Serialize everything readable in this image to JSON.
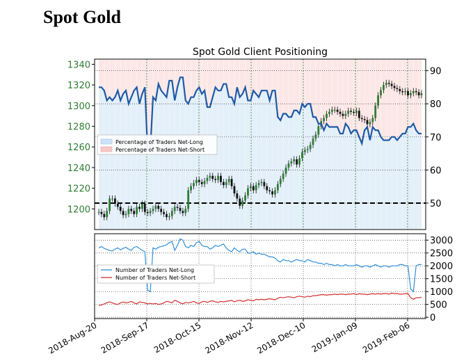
{
  "page": {
    "title": "Spot Gold"
  },
  "chart_data": [
    {
      "type": "line",
      "title": "Spot Gold Client Positioning",
      "y_left": {
        "ticks": [
          1200,
          1220,
          1240,
          1260,
          1280,
          1300,
          1320,
          1340
        ],
        "ylim": [
          1180,
          1345
        ],
        "color": "#2e7d32"
      },
      "y_right": {
        "ticks": [
          50,
          60,
          70,
          80,
          90
        ],
        "ylim": [
          42,
          93.5
        ]
      },
      "x_ticks": [
        "2018-Aug-20",
        "2018-Sep-17",
        "2018-Oct-15",
        "2018-Nov-12",
        "2018-Dec-10",
        "2019-Jan-09",
        "2019-Feb-06"
      ],
      "reference_line": 50,
      "legend": {
        "placement": "left",
        "entries": [
          {
            "label": "Percentage of Traders Net-Long",
            "color": "#cfe3f6"
          },
          {
            "label": "Percentage of Traders Net-Short",
            "color": "#f6c9c9"
          }
        ]
      },
      "series": [
        {
          "name": "Percentage of Traders Net-Long",
          "color": "#1f5aa6",
          "values": [
            85,
            85,
            84,
            81,
            82,
            81,
            82,
            84,
            81,
            83,
            84,
            80,
            82,
            84,
            85,
            80,
            83,
            85,
            66,
            66,
            82,
            81,
            86,
            84,
            83,
            82,
            87,
            87,
            81,
            85,
            88,
            88,
            81,
            80,
            82,
            82,
            84,
            85,
            83,
            84,
            79,
            79,
            82,
            85,
            84,
            84,
            86,
            86,
            82,
            82,
            80,
            85,
            82,
            83,
            85,
            81,
            81,
            84,
            83,
            82,
            84,
            84,
            84,
            81,
            84,
            84,
            76,
            75,
            77,
            77,
            76,
            76,
            78,
            78,
            77,
            80,
            79,
            80,
            80,
            76,
            76,
            74,
            74,
            72,
            74,
            73,
            73,
            73,
            73,
            71,
            71,
            74,
            73,
            71,
            72,
            72,
            70,
            68,
            72,
            73,
            69,
            73,
            72,
            72,
            70,
            69,
            69,
            69,
            70,
            70,
            69,
            70,
            71,
            71,
            73,
            73,
            74,
            72,
            71,
            71
          ]
        },
        {
          "name": "Spot Gold",
          "color": "#2e7d32",
          "values": [
            1197,
            1195,
            1192,
            1198,
            1210,
            1210,
            1205,
            1202,
            1198,
            1194,
            1195,
            1200,
            1198,
            1195,
            1202,
            1200,
            1205,
            1197,
            1196,
            1198,
            1200,
            1203,
            1200,
            1197,
            1195,
            1192,
            1193,
            1198,
            1202,
            1201,
            1198,
            1196,
            1200,
            1218,
            1222,
            1225,
            1228,
            1226,
            1224,
            1227,
            1230,
            1232,
            1229,
            1228,
            1232,
            1226,
            1223,
            1226,
            1229,
            1222,
            1215,
            1210,
            1203,
            1208,
            1213,
            1220,
            1222,
            1218,
            1223,
            1225,
            1226,
            1222,
            1218,
            1217,
            1214,
            1218,
            1224,
            1229,
            1234,
            1240,
            1244,
            1246,
            1248,
            1243,
            1249,
            1255,
            1257,
            1258,
            1262,
            1268,
            1272,
            1280,
            1285,
            1288,
            1292,
            1294,
            1296,
            1296,
            1294,
            1292,
            1290,
            1292,
            1295,
            1294,
            1293,
            1295,
            1288,
            1287,
            1286,
            1282,
            1284,
            1288,
            1300,
            1310,
            1315,
            1320,
            1322,
            1321,
            1319,
            1317,
            1316,
            1314,
            1313,
            1314,
            1310,
            1312,
            1314,
            1313,
            1310,
            1312
          ]
        }
      ]
    },
    {
      "type": "line",
      "y_right": {
        "ticks": [
          0,
          500,
          1000,
          1500,
          2000,
          2500,
          3000
        ],
        "ylim": [
          -50,
          3250
        ]
      },
      "legend": {
        "placement": "left",
        "entries": [
          {
            "label": "Number of Traders Net-Long",
            "color": "#2f8fd8"
          },
          {
            "label": "Number of Traders Net-Short",
            "color": "#d32f2f"
          }
        ]
      },
      "series": [
        {
          "name": "Number of Traders Net-Long",
          "color": "#2f8fd8",
          "values": [
            2700,
            2750,
            2680,
            2640,
            2600,
            2580,
            2650,
            2700,
            2620,
            2680,
            2720,
            2650,
            2600,
            2720,
            2750,
            2680,
            2600,
            2550,
            1050,
            1000,
            2700,
            2650,
            2720,
            2750,
            2780,
            2820,
            2900,
            2950,
            2600,
            2800,
            3050,
            3000,
            2750,
            2700,
            2800,
            2750,
            2900,
            2950,
            2800,
            2750,
            2750,
            2650,
            2700,
            2800,
            2750,
            2800,
            2850,
            2700,
            2600,
            2550,
            2700,
            2600,
            2550,
            2650,
            2650,
            2500,
            2500,
            2550,
            2450,
            2500,
            2450,
            2450,
            2400,
            2350,
            2350,
            2300,
            2200,
            2150,
            2250,
            2200,
            2200,
            2150,
            2200,
            2250,
            2200,
            2200,
            2150,
            2250,
            2200,
            2150,
            2150,
            2100,
            2100,
            2050,
            2100,
            2050,
            2050,
            2000,
            2050,
            2000,
            2000,
            2050,
            2000,
            2000,
            2000,
            2050,
            2000,
            1950,
            2000,
            2000,
            1950,
            2000,
            2050,
            2000,
            1950,
            2000,
            2000,
            1950,
            2000,
            2000,
            2000,
            2050,
            2050,
            2000,
            2000,
            1100,
            1000,
            2000,
            2050,
            2050
          ]
        },
        {
          "name": "Number of Traders Net-Short",
          "color": "#d32f2f",
          "values": [
            460,
            480,
            520,
            560,
            600,
            560,
            520,
            500,
            560,
            600,
            560,
            580,
            620,
            560,
            520,
            600,
            580,
            560,
            520,
            540,
            520,
            540,
            500,
            520,
            560,
            620,
            600,
            560,
            660,
            620,
            560,
            520,
            580,
            560,
            580,
            620,
            560,
            540,
            600,
            620,
            580,
            620,
            640,
            600,
            580,
            620,
            600,
            620,
            640,
            660,
            600,
            640,
            660,
            620,
            640,
            680,
            660,
            640,
            700,
            680,
            700,
            680,
            700,
            720,
            700,
            680,
            740,
            780,
            760,
            780,
            800,
            780,
            760,
            800,
            820,
            800,
            780,
            820,
            800,
            840,
            840,
            860,
            880,
            880,
            860,
            880,
            880,
            900,
            880,
            900,
            900,
            880,
            900,
            900,
            920,
            880,
            920,
            900,
            900,
            880,
            900,
            920,
            900,
            920,
            900,
            920,
            920,
            900,
            940,
            920,
            920,
            900,
            900,
            920,
            920,
            760,
            700,
            760,
            760,
            780
          ]
        }
      ]
    }
  ]
}
